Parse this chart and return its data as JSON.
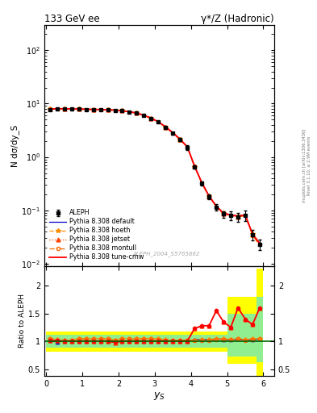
{
  "title_left": "133 GeV ee",
  "title_right": "γ*/Z (Hadronic)",
  "xlabel": "y_S",
  "ylabel_main": "N dσ/dy_S",
  "ylabel_ratio": "Ratio to ALEPH",
  "watermark": "ALEPH_2004_S5765862",
  "right_label_top": "Rivet 3.1.10, ≥ 2.9M events",
  "right_label_bot": "mcplots.cern.ch [arXiv:1306.3436]",
  "data_x": [
    0.1,
    0.3,
    0.5,
    0.7,
    0.9,
    1.1,
    1.3,
    1.5,
    1.7,
    1.9,
    2.1,
    2.3,
    2.5,
    2.7,
    2.9,
    3.1,
    3.3,
    3.5,
    3.7,
    3.9,
    4.1,
    4.3,
    4.5,
    4.7,
    4.9,
    5.1,
    5.3,
    5.5,
    5.7,
    5.9
  ],
  "data_y": [
    7.8,
    7.9,
    8.0,
    7.9,
    7.85,
    7.8,
    7.75,
    7.7,
    7.6,
    7.5,
    7.3,
    7.0,
    6.6,
    6.0,
    5.3,
    4.5,
    3.6,
    2.8,
    2.1,
    1.5,
    0.65,
    0.32,
    0.18,
    0.115,
    0.085,
    0.08,
    0.075,
    0.08,
    0.035,
    0.023
  ],
  "data_yerr": [
    0.2,
    0.15,
    0.15,
    0.15,
    0.15,
    0.15,
    0.15,
    0.15,
    0.15,
    0.15,
    0.15,
    0.15,
    0.15,
    0.15,
    0.15,
    0.15,
    0.15,
    0.15,
    0.15,
    0.15,
    0.04,
    0.025,
    0.018,
    0.015,
    0.012,
    0.015,
    0.015,
    0.018,
    0.008,
    0.005
  ],
  "mc_x": [
    0.1,
    0.3,
    0.5,
    0.7,
    0.9,
    1.1,
    1.3,
    1.5,
    1.7,
    1.9,
    2.1,
    2.3,
    2.5,
    2.7,
    2.9,
    3.1,
    3.3,
    3.5,
    3.7,
    3.9,
    4.1,
    4.3,
    4.5,
    4.7,
    4.9,
    5.1,
    5.3,
    5.5,
    5.7,
    5.9
  ],
  "mc_default_y": [
    7.9,
    8.0,
    8.0,
    7.95,
    7.9,
    7.85,
    7.8,
    7.75,
    7.65,
    7.55,
    7.35,
    7.05,
    6.65,
    6.05,
    5.35,
    4.55,
    3.65,
    2.85,
    2.15,
    1.55,
    0.67,
    0.33,
    0.185,
    0.12,
    0.088,
    0.082,
    0.078,
    0.082,
    0.036,
    0.024
  ],
  "mc_hoeth_y": [
    7.85,
    7.95,
    7.95,
    7.9,
    7.85,
    7.8,
    7.75,
    7.7,
    7.6,
    7.5,
    7.3,
    7.0,
    6.6,
    6.0,
    5.3,
    4.5,
    3.6,
    2.8,
    2.1,
    1.52,
    0.66,
    0.33,
    0.185,
    0.12,
    0.088,
    0.082,
    0.078,
    0.082,
    0.036,
    0.024
  ],
  "mc_jetset_y": [
    7.88,
    7.98,
    7.98,
    7.93,
    7.88,
    7.83,
    7.78,
    7.73,
    7.63,
    7.53,
    7.33,
    7.03,
    6.63,
    6.03,
    5.33,
    4.53,
    3.63,
    2.83,
    2.13,
    1.53,
    0.665,
    0.325,
    0.182,
    0.118,
    0.086,
    0.08,
    0.076,
    0.08,
    0.035,
    0.023
  ],
  "mc_montull_y": [
    7.87,
    7.97,
    7.97,
    7.92,
    7.87,
    7.82,
    7.77,
    7.72,
    7.62,
    7.52,
    7.32,
    7.02,
    6.62,
    6.02,
    5.32,
    4.52,
    3.62,
    2.82,
    2.12,
    1.52,
    0.662,
    0.322,
    0.18,
    0.116,
    0.085,
    0.079,
    0.075,
    0.079,
    0.034,
    0.022
  ],
  "mc_tunecmw_y": [
    7.9,
    8.0,
    8.0,
    7.95,
    7.9,
    7.85,
    7.8,
    7.75,
    7.65,
    7.55,
    7.35,
    7.05,
    6.65,
    6.05,
    5.35,
    4.55,
    3.65,
    2.85,
    2.15,
    1.55,
    0.67,
    0.33,
    0.185,
    0.12,
    0.088,
    0.082,
    0.078,
    0.082,
    0.036,
    0.024
  ],
  "ratio_default": [
    1.01,
    0.99,
    1.0,
    1.005,
    1.005,
    1.005,
    1.005,
    1.005,
    1.005,
    0.98,
    1.005,
    1.005,
    1.005,
    1.005,
    1.005,
    1.005,
    1.005,
    1.005,
    1.005,
    1.005,
    1.03,
    1.03,
    1.03,
    1.04,
    1.035,
    1.025,
    1.04,
    1.025,
    1.03,
    1.04
  ],
  "ratio_hoeth": [
    1.05,
    1.03,
    1.02,
    1.02,
    1.05,
    1.05,
    1.05,
    1.05,
    1.05,
    1.02,
    1.05,
    1.05,
    1.05,
    1.05,
    1.05,
    1.04,
    1.03,
    1.02,
    1.02,
    1.02,
    1.02,
    1.03,
    1.03,
    1.05,
    1.04,
    1.03,
    1.05,
    1.03,
    1.04,
    1.05
  ],
  "ratio_jetset": [
    1.01,
    1.01,
    0.998,
    1.003,
    1.003,
    1.003,
    1.003,
    1.003,
    1.003,
    0.975,
    1.003,
    1.003,
    1.003,
    1.003,
    1.003,
    1.003,
    1.003,
    1.003,
    1.003,
    1.003,
    1.23,
    1.28,
    1.28,
    1.55,
    1.35,
    1.25,
    1.6,
    1.4,
    1.3,
    1.6
  ],
  "ratio_montull": [
    1.04,
    1.02,
    1.01,
    1.01,
    1.04,
    1.04,
    1.04,
    1.04,
    1.04,
    1.01,
    1.04,
    1.04,
    1.04,
    1.04,
    1.04,
    1.03,
    1.02,
    1.01,
    1.01,
    1.01,
    1.02,
    1.02,
    1.02,
    1.03,
    1.035,
    1.025,
    1.04,
    1.02,
    1.03,
    1.04
  ],
  "ratio_tunecmw": [
    1.01,
    1.01,
    1.0,
    1.005,
    1.005,
    1.005,
    1.005,
    1.005,
    1.005,
    0.98,
    1.005,
    1.005,
    1.005,
    1.005,
    1.005,
    1.005,
    1.005,
    1.005,
    1.005,
    1.005,
    1.23,
    1.28,
    1.28,
    1.55,
    1.35,
    1.25,
    1.6,
    1.4,
    1.3,
    1.6
  ],
  "band_x_edges": [
    0.0,
    0.2,
    0.4,
    0.6,
    0.8,
    1.0,
    1.2,
    1.4,
    1.6,
    1.8,
    2.0,
    2.2,
    2.4,
    2.6,
    2.8,
    3.0,
    3.2,
    3.4,
    3.6,
    3.8,
    4.0,
    4.2,
    4.4,
    4.6,
    4.8,
    5.0,
    5.2,
    5.4,
    5.6,
    5.8,
    6.0
  ],
  "band_yellow_lo": [
    0.82,
    0.82,
    0.82,
    0.82,
    0.82,
    0.82,
    0.82,
    0.82,
    0.82,
    0.82,
    0.82,
    0.82,
    0.82,
    0.82,
    0.82,
    0.82,
    0.82,
    0.82,
    0.82,
    0.82,
    0.82,
    0.82,
    0.82,
    0.82,
    0.82,
    0.6,
    0.6,
    0.6,
    0.6,
    0.37
  ],
  "band_yellow_hi": [
    1.18,
    1.18,
    1.18,
    1.18,
    1.18,
    1.18,
    1.18,
    1.18,
    1.18,
    1.18,
    1.18,
    1.18,
    1.18,
    1.18,
    1.18,
    1.18,
    1.18,
    1.18,
    1.18,
    1.18,
    1.18,
    1.18,
    1.18,
    1.18,
    1.18,
    1.8,
    1.8,
    1.8,
    1.8,
    2.3
  ],
  "band_green_lo": [
    0.88,
    0.88,
    0.88,
    0.88,
    0.88,
    0.88,
    0.88,
    0.88,
    0.88,
    0.88,
    0.88,
    0.88,
    0.88,
    0.88,
    0.88,
    0.88,
    0.88,
    0.88,
    0.88,
    0.88,
    0.88,
    0.88,
    0.88,
    0.88,
    0.88,
    0.72,
    0.72,
    0.72,
    0.72,
    0.62
  ],
  "band_green_hi": [
    1.12,
    1.12,
    1.12,
    1.12,
    1.12,
    1.12,
    1.12,
    1.12,
    1.12,
    1.12,
    1.12,
    1.12,
    1.12,
    1.12,
    1.12,
    1.12,
    1.12,
    1.12,
    1.12,
    1.12,
    1.12,
    1.12,
    1.12,
    1.12,
    1.12,
    1.5,
    1.5,
    1.5,
    1.5,
    1.8
  ],
  "color_default": "#0000cc",
  "color_hoeth": "#ff8c00",
  "color_jetset": "#ff4500",
  "color_montull": "#ff6600",
  "color_tunecmw": "#ff0000",
  "color_data": "#000000",
  "ylim_main": [
    0.009,
    300
  ],
  "ylim_ratio": [
    0.38,
    2.35
  ],
  "xlim": [
    -0.05,
    6.3
  ]
}
